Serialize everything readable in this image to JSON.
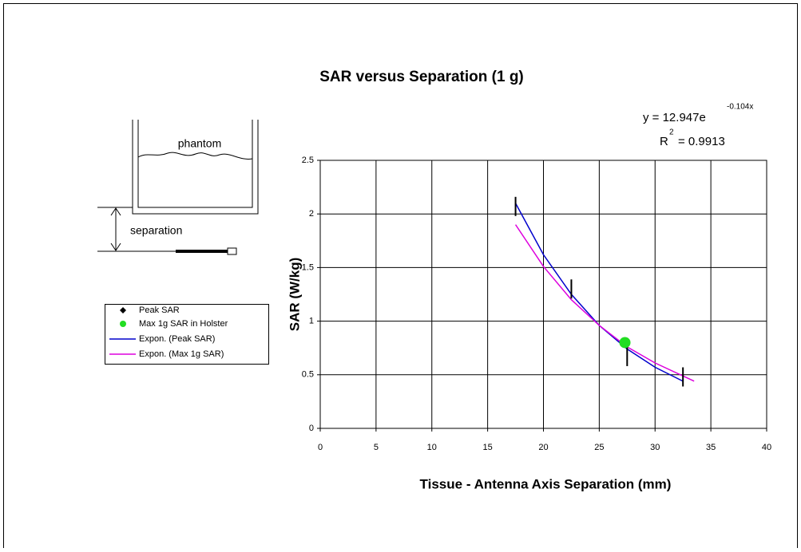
{
  "chart_data": {
    "type": "scatter",
    "title": "SAR versus Separation (1 g)",
    "x_label": "Tissue - Antenna Axis Separation (mm)",
    "y_label": "SAR (W/kg)",
    "xlim": [
      0,
      40
    ],
    "xticks": [
      0,
      5,
      10,
      15,
      20,
      25,
      30,
      35,
      40
    ],
    "ylim": [
      0,
      2.5
    ],
    "yticks": [
      0,
      0.5,
      1,
      1.5,
      2,
      2.5
    ],
    "grid": true,
    "equation": {
      "base": "y = 12.947e",
      "exponent": "-0.104x",
      "r_base": "R",
      "r_exponent": "2",
      "r_value": "= 0.9913"
    },
    "diagram": {
      "phantom": "phantom",
      "separation": "separation"
    },
    "series": [
      {
        "name": "Peak SAR",
        "marker": "tick",
        "color": "#000000",
        "x": [
          17.5,
          22.5,
          27.5,
          32.5
        ],
        "values": [
          2.07,
          1.3,
          0.67,
          0.48
        ]
      },
      {
        "name": "Max 1g SAR in Holster",
        "marker": "circle",
        "color": "#22dd22",
        "x": [
          27.3
        ],
        "values": [
          0.8
        ]
      },
      {
        "name": "Expon. (Peak SAR)",
        "marker": "line",
        "color": "#0000cc",
        "x": [
          17.5,
          20,
          22.5,
          25,
          27.5,
          30,
          32.5
        ],
        "values": [
          2.1,
          1.62,
          1.25,
          0.96,
          0.74,
          0.57,
          0.44
        ]
      },
      {
        "name": "Expon. (Max 1g SAR)",
        "marker": "line",
        "color": "#dd00dd",
        "x": [
          17.5,
          20,
          22.5,
          25,
          27.5,
          30,
          33.5
        ],
        "values": [
          1.9,
          1.51,
          1.2,
          0.96,
          0.76,
          0.61,
          0.44
        ]
      }
    ]
  }
}
